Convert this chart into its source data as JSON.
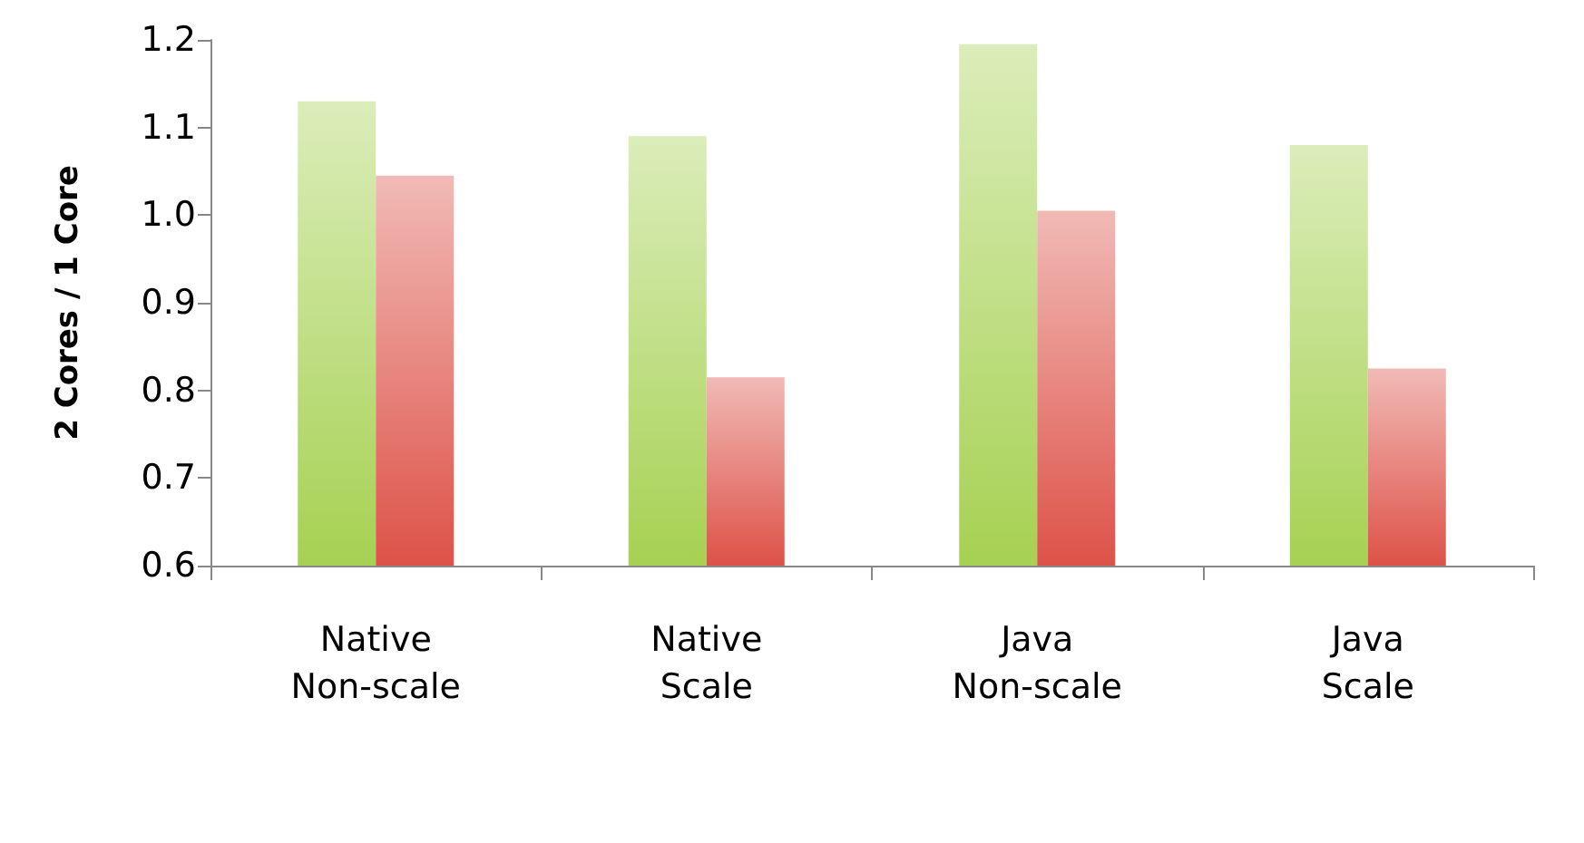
{
  "chart_data": {
    "type": "bar",
    "ylabel": "2 Cores / 1 Core",
    "categories": [
      "Native\nNon-scale",
      "Native\nScale",
      "Java\nNon-scale",
      "Java\nScale"
    ],
    "series": [
      {
        "color": "#a6d152",
        "values": [
          1.13,
          1.09,
          1.195,
          1.08
        ]
      },
      {
        "color": "#dd5248",
        "values": [
          1.045,
          0.815,
          1.005,
          0.825
        ]
      }
    ],
    "ylim": [
      0.6,
      1.2
    ],
    "yticks": [
      0.6,
      0.7,
      0.8,
      0.9,
      {
        "value": 1.0,
        "label": "1.0"
      },
      1.1,
      1.2
    ],
    "grid": false
  }
}
